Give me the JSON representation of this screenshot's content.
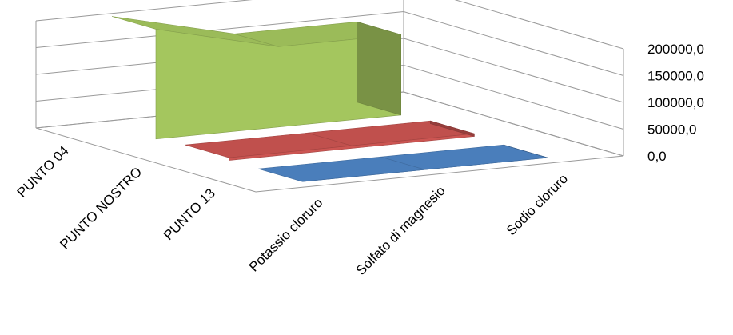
{
  "chart_data": {
    "type": "area",
    "three_d": true,
    "title": "",
    "xlabel": "",
    "ylabel": "",
    "categories": [
      "Potassio cloruro",
      "Solfato di magnesio",
      "Sodio cloruro"
    ],
    "y_ticks": [
      "0,0",
      "50000,0",
      "100000,0",
      "150000,0",
      "200000,0"
    ],
    "ylim": [
      0,
      200000
    ],
    "grid": true,
    "legend": "none",
    "series": [
      {
        "name": "PUNTO 13",
        "color": "#4a7ebb",
        "values": [
          0,
          0,
          0
        ]
      },
      {
        "name": "PUNTO NOSTRO",
        "color": "#c0504d",
        "values": [
          5000,
          5000,
          5000
        ]
      },
      {
        "name": "PUNTO 04",
        "color": "#9bbb59",
        "values": [
          205000,
          150000,
          150000
        ]
      }
    ]
  }
}
